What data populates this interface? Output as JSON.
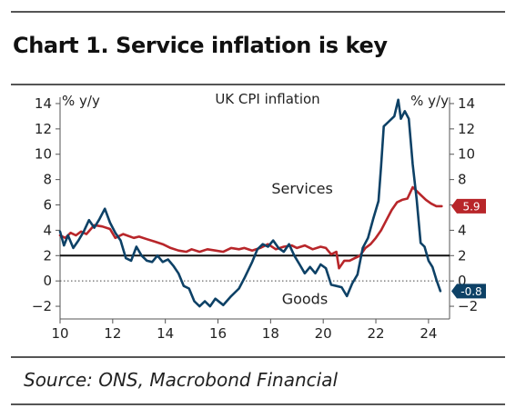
{
  "title": "Chart 1. Service inflation is key",
  "source": "Source: ONS, Macrobond Financial",
  "chart_data": {
    "type": "line",
    "title": "UK CPI inflation",
    "ylabel_left": "% y/y",
    "ylabel_right": "% y/y",
    "xlim": [
      2010,
      2024.8
    ],
    "ylim": [
      -3,
      14.5
    ],
    "x_ticks": [
      10,
      12,
      14,
      16,
      18,
      20,
      22,
      24
    ],
    "y_ticks": [
      -2,
      0,
      2,
      4,
      6,
      8,
      10,
      12,
      14
    ],
    "reference_line": 2,
    "zero_line": "dotted",
    "end_labels": [
      {
        "series": "Services",
        "value": "5.9",
        "color": "#b8262a"
      },
      {
        "series": "Goods",
        "value": "-0.8",
        "color": "#0d4166"
      }
    ],
    "series": [
      {
        "name": "Services",
        "color": "#b8262a",
        "label_at": [
          2019.2,
          6.9
        ],
        "points": [
          [
            2010.0,
            3.6
          ],
          [
            2010.2,
            3.4
          ],
          [
            2010.4,
            3.8
          ],
          [
            2010.6,
            3.6
          ],
          [
            2010.8,
            3.9
          ],
          [
            2011.0,
            3.7
          ],
          [
            2011.3,
            4.4
          ],
          [
            2011.6,
            4.3
          ],
          [
            2011.9,
            4.1
          ],
          [
            2012.1,
            3.4
          ],
          [
            2012.4,
            3.7
          ],
          [
            2012.8,
            3.4
          ],
          [
            2013.0,
            3.5
          ],
          [
            2013.3,
            3.3
          ],
          [
            2013.6,
            3.1
          ],
          [
            2013.9,
            2.9
          ],
          [
            2014.2,
            2.6
          ],
          [
            2014.5,
            2.4
          ],
          [
            2014.8,
            2.3
          ],
          [
            2015.0,
            2.5
          ],
          [
            2015.3,
            2.3
          ],
          [
            2015.6,
            2.5
          ],
          [
            2015.9,
            2.4
          ],
          [
            2016.2,
            2.3
          ],
          [
            2016.5,
            2.6
          ],
          [
            2016.8,
            2.5
          ],
          [
            2017.0,
            2.6
          ],
          [
            2017.3,
            2.4
          ],
          [
            2017.6,
            2.6
          ],
          [
            2017.9,
            2.9
          ],
          [
            2018.2,
            2.5
          ],
          [
            2018.5,
            2.7
          ],
          [
            2018.8,
            2.8
          ],
          [
            2019.0,
            2.6
          ],
          [
            2019.3,
            2.8
          ],
          [
            2019.6,
            2.5
          ],
          [
            2019.9,
            2.7
          ],
          [
            2020.1,
            2.6
          ],
          [
            2020.3,
            2.1
          ],
          [
            2020.5,
            2.3
          ],
          [
            2020.6,
            1.0
          ],
          [
            2020.8,
            1.6
          ],
          [
            2021.0,
            1.6
          ],
          [
            2021.2,
            1.8
          ],
          [
            2021.4,
            2.0
          ],
          [
            2021.6,
            2.6
          ],
          [
            2021.8,
            2.9
          ],
          [
            2022.0,
            3.4
          ],
          [
            2022.2,
            4.0
          ],
          [
            2022.4,
            4.8
          ],
          [
            2022.6,
            5.6
          ],
          [
            2022.8,
            6.2
          ],
          [
            2023.0,
            6.4
          ],
          [
            2023.2,
            6.5
          ],
          [
            2023.4,
            7.4
          ],
          [
            2023.5,
            7.2
          ],
          [
            2023.7,
            6.8
          ],
          [
            2023.9,
            6.4
          ],
          [
            2024.1,
            6.1
          ],
          [
            2024.3,
            5.9
          ],
          [
            2024.5,
            5.9
          ]
        ]
      },
      {
        "name": "Goods",
        "color": "#0d4166",
        "label_at": [
          2019.3,
          -1.8
        ],
        "points": [
          [
            2010.0,
            3.9
          ],
          [
            2010.15,
            2.8
          ],
          [
            2010.3,
            3.6
          ],
          [
            2010.5,
            2.6
          ],
          [
            2010.7,
            3.2
          ],
          [
            2010.9,
            3.9
          ],
          [
            2011.1,
            4.8
          ],
          [
            2011.3,
            4.2
          ],
          [
            2011.5,
            4.9
          ],
          [
            2011.7,
            5.7
          ],
          [
            2011.9,
            4.6
          ],
          [
            2012.1,
            3.8
          ],
          [
            2012.3,
            3.2
          ],
          [
            2012.5,
            1.8
          ],
          [
            2012.7,
            1.6
          ],
          [
            2012.9,
            2.7
          ],
          [
            2013.1,
            2.0
          ],
          [
            2013.3,
            1.6
          ],
          [
            2013.5,
            1.5
          ],
          [
            2013.7,
            2.0
          ],
          [
            2013.9,
            1.5
          ],
          [
            2014.1,
            1.7
          ],
          [
            2014.3,
            1.2
          ],
          [
            2014.5,
            0.6
          ],
          [
            2014.7,
            -0.4
          ],
          [
            2014.9,
            -0.6
          ],
          [
            2015.1,
            -1.6
          ],
          [
            2015.3,
            -2.0
          ],
          [
            2015.5,
            -1.6
          ],
          [
            2015.7,
            -2.0
          ],
          [
            2015.9,
            -1.4
          ],
          [
            2016.2,
            -1.9
          ],
          [
            2016.5,
            -1.2
          ],
          [
            2016.8,
            -0.6
          ],
          [
            2017.0,
            0.2
          ],
          [
            2017.3,
            1.5
          ],
          [
            2017.5,
            2.5
          ],
          [
            2017.7,
            2.9
          ],
          [
            2017.9,
            2.7
          ],
          [
            2018.1,
            3.2
          ],
          [
            2018.3,
            2.6
          ],
          [
            2018.5,
            2.3
          ],
          [
            2018.7,
            2.9
          ],
          [
            2018.9,
            2.0
          ],
          [
            2019.1,
            1.3
          ],
          [
            2019.3,
            0.6
          ],
          [
            2019.5,
            1.1
          ],
          [
            2019.7,
            0.6
          ],
          [
            2019.9,
            1.3
          ],
          [
            2020.1,
            1.0
          ],
          [
            2020.3,
            -0.3
          ],
          [
            2020.5,
            -0.4
          ],
          [
            2020.7,
            -0.5
          ],
          [
            2020.9,
            -1.2
          ],
          [
            2021.1,
            -0.2
          ],
          [
            2021.3,
            0.5
          ],
          [
            2021.5,
            2.6
          ],
          [
            2021.7,
            3.4
          ],
          [
            2021.9,
            4.9
          ],
          [
            2022.1,
            6.3
          ],
          [
            2022.2,
            9.1
          ],
          [
            2022.3,
            12.2
          ],
          [
            2022.5,
            12.6
          ],
          [
            2022.7,
            13.0
          ],
          [
            2022.85,
            14.3
          ],
          [
            2022.95,
            12.8
          ],
          [
            2023.1,
            13.4
          ],
          [
            2023.25,
            12.8
          ],
          [
            2023.4,
            9.2
          ],
          [
            2023.55,
            6.4
          ],
          [
            2023.7,
            3.0
          ],
          [
            2023.85,
            2.7
          ],
          [
            2024.0,
            1.6
          ],
          [
            2024.15,
            1.1
          ],
          [
            2024.3,
            0.1
          ],
          [
            2024.45,
            -0.8
          ]
        ]
      }
    ]
  }
}
